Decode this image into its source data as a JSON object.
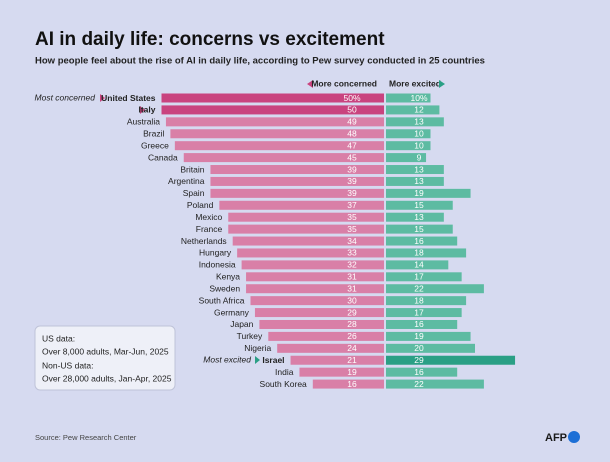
{
  "chart_data": {
    "type": "diverging-bar",
    "title": "AI in daily life: concerns vs excitement",
    "subtitle": "How people feel about the rise of AI in daily life, according to Pew survey conducted in 25 countries",
    "categories": [
      "United States",
      "Italy",
      "Australia",
      "Brazil",
      "Greece",
      "Canada",
      "Britain",
      "Argentina",
      "Spain",
      "Poland",
      "Mexico",
      "France",
      "Netherlands",
      "Hungary",
      "Indonesia",
      "Kenya",
      "Sweden",
      "South Africa",
      "Germany",
      "Japan",
      "Turkey",
      "Nigeria",
      "Israel",
      "India",
      "South Korea"
    ],
    "series": [
      {
        "name": "More concerned",
        "color": "#d97fa7",
        "colors": [
          "#c9437f",
          "#c9437f",
          "#d97fa7",
          "#d97fa7",
          "#d97fa7",
          "#d97fa7",
          "#d97fa7",
          "#d97fa7",
          "#d97fa7",
          "#d97fa7",
          "#d97fa7",
          "#d97fa7",
          "#d97fa7",
          "#d97fa7",
          "#d97fa7",
          "#d97fa7",
          "#d97fa7",
          "#d97fa7",
          "#d97fa7",
          "#d97fa7",
          "#d97fa7",
          "#d97fa7",
          "#d97fa7",
          "#d97fa7",
          "#d97fa7"
        ],
        "values": [
          50,
          50,
          49,
          48,
          47,
          45,
          39,
          39,
          39,
          37,
          35,
          35,
          34,
          33,
          32,
          31,
          31,
          30,
          29,
          28,
          26,
          24,
          21,
          19,
          16
        ],
        "value_labels": [
          "50%",
          "50",
          "49",
          "48",
          "47",
          "45",
          "39",
          "39",
          "39",
          "37",
          "35",
          "35",
          "34",
          "33",
          "32",
          "31",
          "31",
          "30",
          "29",
          "28",
          "26",
          "24",
          "21",
          "19",
          "16"
        ]
      },
      {
        "name": "More excited",
        "color": "#5dbba2",
        "colors": [
          "#5dbba2",
          "#5dbba2",
          "#5dbba2",
          "#5dbba2",
          "#5dbba2",
          "#5dbba2",
          "#5dbba2",
          "#5dbba2",
          "#5dbba2",
          "#5dbba2",
          "#5dbba2",
          "#5dbba2",
          "#5dbba2",
          "#5dbba2",
          "#5dbba2",
          "#5dbba2",
          "#5dbba2",
          "#5dbba2",
          "#5dbba2",
          "#5dbba2",
          "#5dbba2",
          "#5dbba2",
          "#2a9f85",
          "#5dbba2",
          "#5dbba2"
        ],
        "values": [
          10,
          12,
          13,
          10,
          10,
          9,
          13,
          13,
          19,
          15,
          13,
          15,
          16,
          18,
          14,
          17,
          22,
          18,
          17,
          16,
          19,
          20,
          29,
          16,
          22
        ],
        "value_labels": [
          "10%",
          "12",
          "13",
          "10",
          "10",
          "9",
          "13",
          "13",
          "19",
          "15",
          "13",
          "15",
          "16",
          "18",
          "14",
          "17",
          "22",
          "18",
          "17",
          "16",
          "19",
          "20",
          "29",
          "16",
          "22"
        ]
      }
    ],
    "annotations": [
      "Most concerned",
      "Most excited"
    ],
    "note": [
      "US data:",
      "Over 8,000 adults, Mar-Jun, 2025",
      "Non-US data:",
      "Over 28,000 adults, Jan-Apr, 2025"
    ],
    "source": "Source: Pew Research Center",
    "logo": "AFP"
  }
}
